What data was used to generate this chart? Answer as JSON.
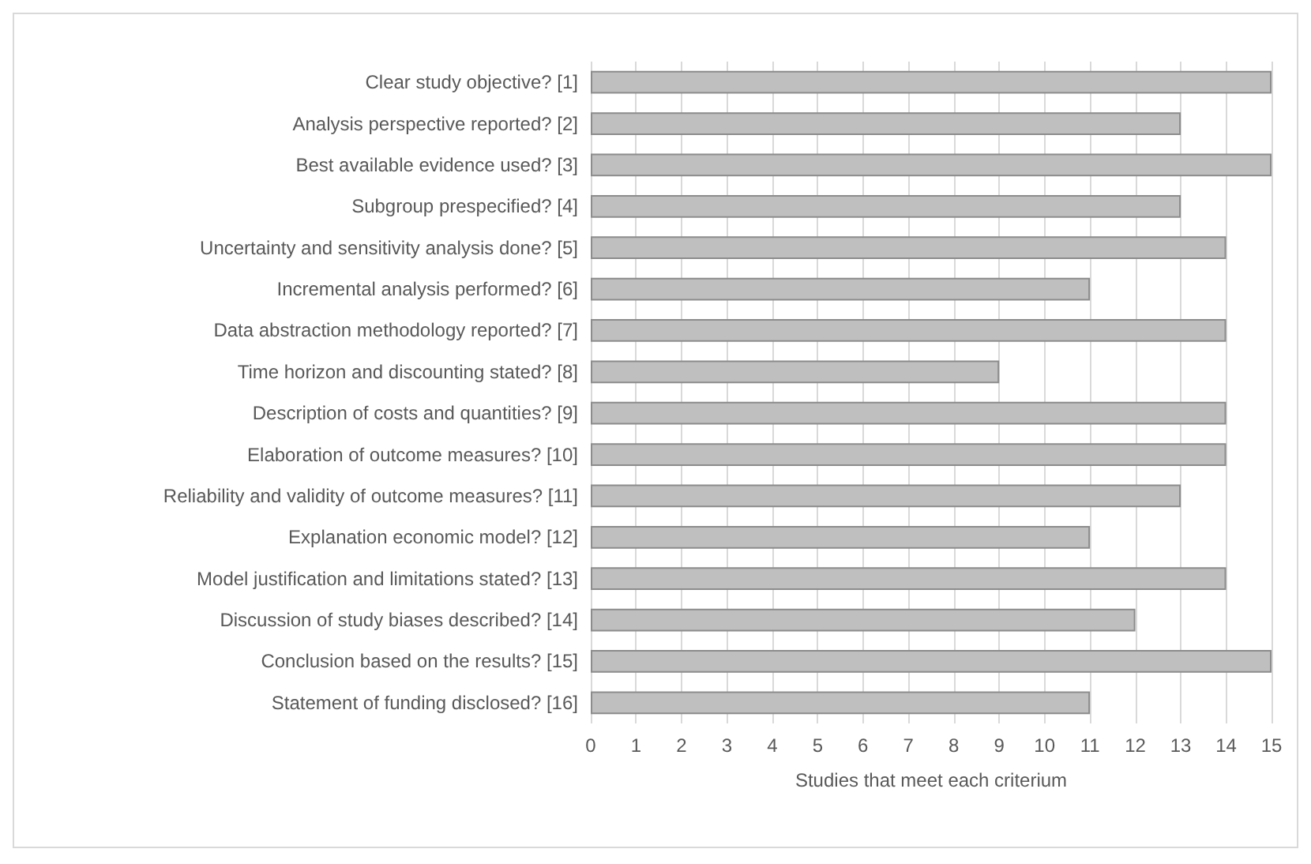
{
  "chart_data": {
    "type": "bar",
    "orientation": "horizontal",
    "xlabel": "Studies that meet each criterium",
    "categories": [
      "Clear study objective? [1]",
      "Analysis perspective reported? [2]",
      "Best available evidence used? [3]",
      "Subgroup prespecified? [4]",
      "Uncertainty and sensitivity analysis done? [5]",
      "Incremental analysis performed? [6]",
      "Data abstraction methodology reported? [7]",
      "Time horizon and discounting stated? [8]",
      "Description of costs and quantities? [9]",
      "Elaboration of outcome measures? [10]",
      "Reliability and validity of outcome measures? [11]",
      "Explanation economic model? [12]",
      "Model justification and limitations stated? [13]",
      "Discussion of study biases described? [14]",
      "Conclusion based on the results? [15]",
      "Statement of funding disclosed? [16]"
    ],
    "values": [
      15,
      13,
      15,
      13,
      14,
      11,
      14,
      9,
      14,
      14,
      13,
      11,
      14,
      12,
      15,
      11
    ],
    "color": "#bfbfbf",
    "xlim": [
      0,
      15
    ],
    "xticks": [
      0,
      1,
      2,
      3,
      4,
      5,
      6,
      7,
      8,
      9,
      10,
      11,
      12,
      13,
      14,
      15
    ],
    "grid": "x"
  }
}
